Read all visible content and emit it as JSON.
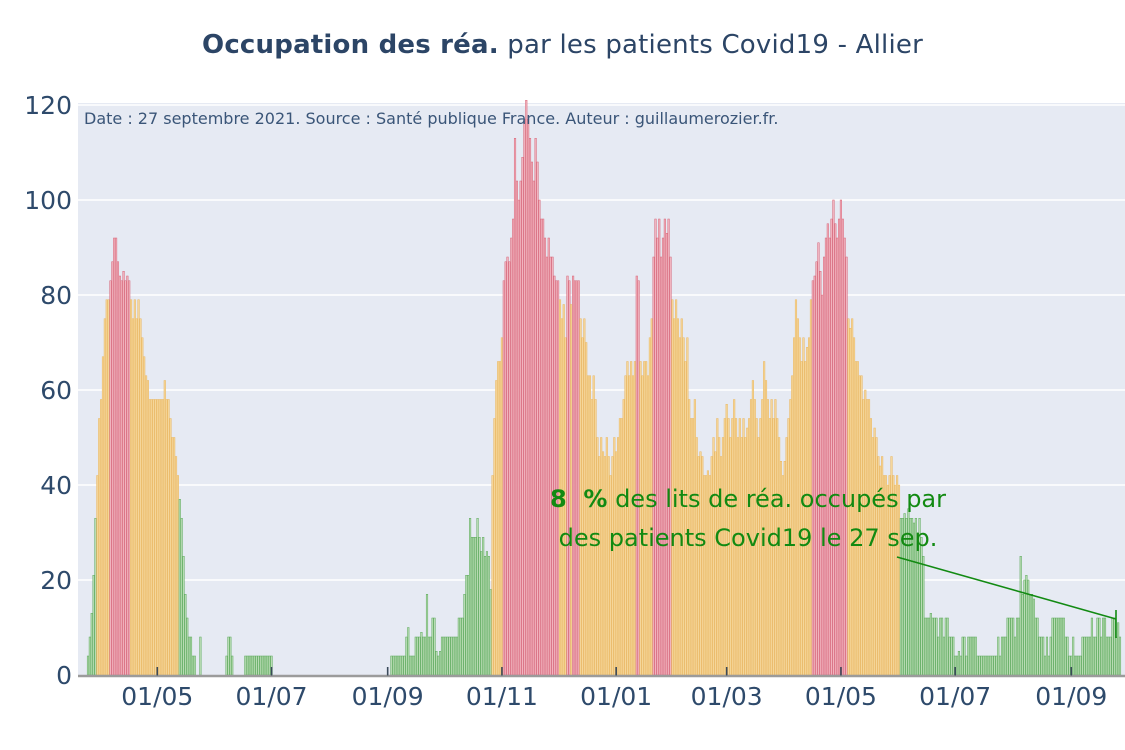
{
  "title": {
    "bold": "Occupation des réa.",
    "rest": " par les patients Covid19 - Allier"
  },
  "subtitle": "Date : 27 septembre 2021. Source : Santé publique France. Auteur : guillaumerozier.fr.",
  "annotation": {
    "value_bold": "8  %",
    "line1_rest": " des lits de réa. occupés par",
    "line2": "des patients Covid19 le 27 sep."
  },
  "chart_data": {
    "type": "bar",
    "title": "Occupation des réa. par les patients Covid19 - Allier",
    "xlabel": "",
    "ylabel": "",
    "ylim": [
      0,
      122
    ],
    "grid": true,
    "y_ticks": [
      0,
      20,
      40,
      60,
      80,
      100,
      120
    ],
    "x_ticks": [
      {
        "label": "01/05",
        "day": 37
      },
      {
        "label": "01/07",
        "day": 98
      },
      {
        "label": "01/09",
        "day": 160
      },
      {
        "label": "01/11",
        "day": 221
      },
      {
        "label": "01/01",
        "day": 282
      },
      {
        "label": "01/03",
        "day": 341
      },
      {
        "label": "01/05",
        "day": 402
      },
      {
        "label": "01/07",
        "day": 463
      },
      {
        "label": "01/09",
        "day": 525
      }
    ],
    "thresholds": {
      "orange_min": 40,
      "red_min": 80
    },
    "colors": {
      "green_fill": "#b9dcb4",
      "green_edge": "#5aa85a",
      "orange_fill": "#f5d79b",
      "orange_edge": "#e9b55f",
      "red_fill": "#f1b4bf",
      "red_edge": "#d66478",
      "plot_bg": "#e6eaf3",
      "grid": "#ffffff",
      "axis_line": "#9b9b9b",
      "tick_mark": "#3b4a5a",
      "axis_text": "#2e4a6b",
      "annotation_green": "#128a12"
    },
    "last_value": 8,
    "values": [
      4,
      8,
      13,
      21,
      33,
      42,
      54,
      58,
      67,
      75,
      79,
      79,
      83,
      87,
      92,
      92,
      87,
      84,
      83,
      85,
      83,
      84,
      83,
      79,
      75,
      79,
      75,
      79,
      75,
      71,
      67,
      63,
      62,
      58,
      58,
      58,
      58,
      58,
      58,
      58,
      58,
      62,
      58,
      58,
      54,
      50,
      50,
      46,
      42,
      37,
      33,
      25,
      17,
      12,
      8,
      8,
      4,
      4,
      0,
      0,
      8,
      0,
      0,
      0,
      0,
      0,
      0,
      0,
      0,
      0,
      0,
      0,
      0,
      0,
      4,
      8,
      8,
      4,
      0,
      0,
      0,
      0,
      0,
      0,
      4,
      4,
      4,
      4,
      4,
      4,
      4,
      4,
      4,
      4,
      4,
      4,
      4,
      4,
      4,
      0,
      0,
      0,
      0,
      0,
      0,
      0,
      0,
      0,
      0,
      0,
      0,
      0,
      0,
      0,
      0,
      0,
      0,
      0,
      0,
      0,
      0,
      0,
      0,
      0,
      0,
      0,
      0,
      0,
      0,
      0,
      0,
      0,
      0,
      0,
      0,
      0,
      0,
      0,
      0,
      0,
      0,
      0,
      0,
      0,
      0,
      0,
      0,
      0,
      0,
      0,
      0,
      0,
      0,
      0,
      0,
      0,
      0,
      0,
      0,
      0,
      0,
      0,
      4,
      4,
      4,
      4,
      4,
      4,
      4,
      4,
      8,
      10,
      4,
      4,
      4,
      8,
      8,
      8,
      9,
      8,
      8,
      17,
      8,
      8,
      12,
      12,
      5,
      4,
      5,
      8,
      8,
      8,
      8,
      8,
      8,
      8,
      8,
      8,
      12,
      12,
      12,
      17,
      21,
      21,
      33,
      29,
      29,
      29,
      33,
      29,
      26,
      29,
      25,
      26,
      25,
      18,
      42,
      54,
      62,
      66,
      66,
      71,
      83,
      87,
      88,
      87,
      92,
      96,
      113,
      104,
      100,
      104,
      109,
      117,
      121,
      117,
      113,
      108,
      104,
      113,
      108,
      100,
      96,
      96,
      92,
      88,
      92,
      88,
      88,
      84,
      83,
      83,
      79,
      75,
      78,
      71,
      84,
      83,
      78,
      84,
      83,
      83,
      83,
      75,
      71,
      75,
      70,
      63,
      63,
      58,
      63,
      58,
      50,
      46,
      50,
      47,
      46,
      50,
      46,
      42,
      46,
      50,
      47,
      50,
      54,
      54,
      58,
      63,
      66,
      63,
      66,
      63,
      66,
      84,
      83,
      66,
      63,
      66,
      66,
      63,
      71,
      75,
      88,
      96,
      92,
      96,
      88,
      92,
      96,
      93,
      96,
      88,
      79,
      75,
      79,
      75,
      71,
      75,
      71,
      66,
      71,
      58,
      54,
      54,
      58,
      50,
      46,
      47,
      46,
      42,
      42,
      43,
      42,
      46,
      50,
      47,
      54,
      50,
      46,
      50,
      54,
      57,
      54,
      50,
      54,
      58,
      54,
      50,
      54,
      50,
      54,
      50,
      52,
      54,
      58,
      62,
      58,
      54,
      50,
      54,
      58,
      66,
      62,
      58,
      54,
      58,
      54,
      58,
      54,
      50,
      45,
      42,
      45,
      50,
      54,
      58,
      63,
      71,
      79,
      75,
      71,
      66,
      71,
      66,
      69,
      71,
      79,
      83,
      84,
      87,
      91,
      85,
      80,
      88,
      92,
      95,
      92,
      96,
      100,
      95,
      92,
      96,
      100,
      96,
      92,
      88,
      75,
      73,
      75,
      71,
      66,
      66,
      63,
      63,
      58,
      60,
      58,
      58,
      54,
      50,
      52,
      50,
      46,
      44,
      46,
      42,
      42,
      40,
      42,
      46,
      42,
      40,
      42,
      40,
      33,
      33,
      34,
      33,
      35,
      33,
      33,
      32,
      33,
      30,
      33,
      29,
      25,
      12,
      12,
      12,
      13,
      12,
      12,
      12,
      8,
      12,
      12,
      8,
      12,
      12,
      8,
      8,
      8,
      4,
      4,
      5,
      4,
      8,
      8,
      4,
      8,
      8,
      8,
      8,
      8,
      4,
      4,
      4,
      4,
      4,
      4,
      4,
      4,
      4,
      4,
      4,
      8,
      4,
      8,
      8,
      8,
      12,
      12,
      12,
      12,
      8,
      12,
      12,
      25,
      17,
      20,
      21,
      20,
      17,
      17,
      16,
      12,
      12,
      8,
      8,
      8,
      4,
      8,
      4,
      8,
      12,
      12,
      12,
      12,
      12,
      12,
      12,
      8,
      8,
      4,
      4,
      8,
      4,
      4,
      4,
      4,
      8,
      8,
      8,
      8,
      8,
      12,
      8,
      8,
      12,
      12,
      8,
      12,
      12,
      8,
      8,
      8,
      12,
      12,
      8,
      11,
      8
    ]
  }
}
